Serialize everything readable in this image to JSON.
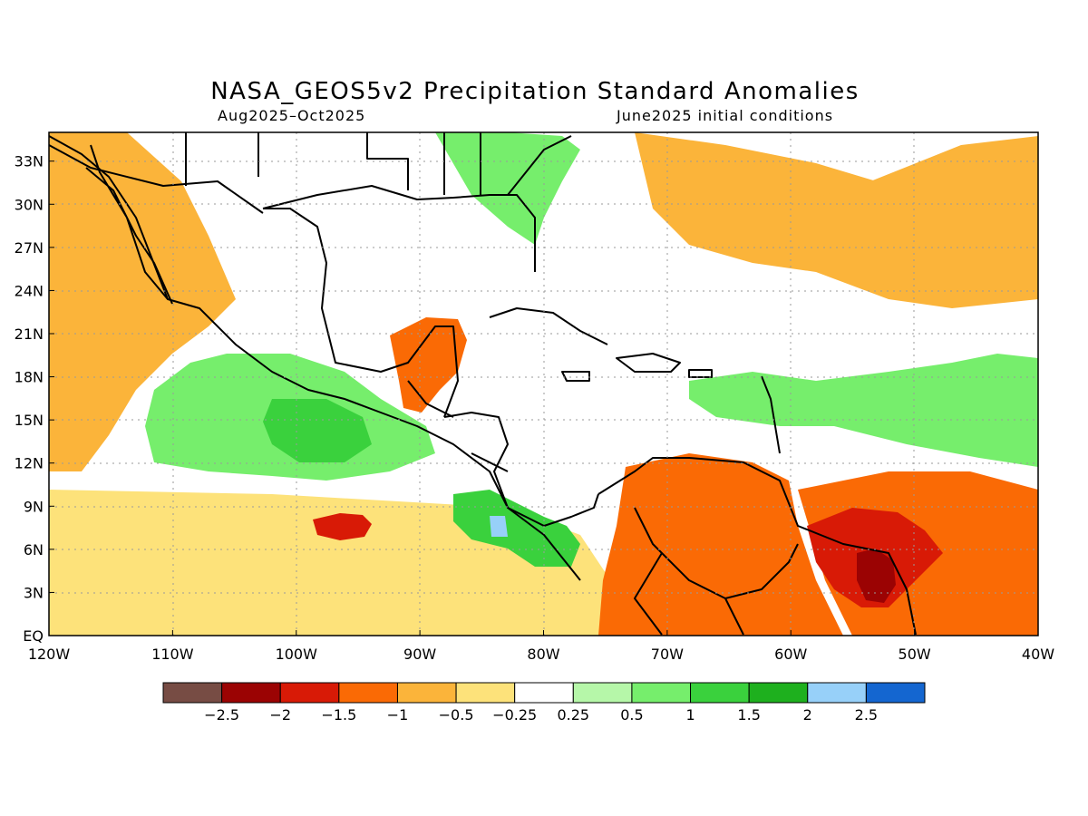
{
  "figure": {
    "title": "NASA_GEOS5v2 Precipitation Standard Anomalies",
    "period": "Aug2025–Oct2025",
    "init": "June2025 initial conditions"
  },
  "axes": {
    "lat_labels": [
      "EQ",
      "3N",
      "6N",
      "9N",
      "12N",
      "15N",
      "18N",
      "21N",
      "24N",
      "27N",
      "30N",
      "33N"
    ],
    "lon_labels": [
      "120W",
      "110W",
      "100W",
      "90W",
      "80W",
      "70W",
      "60W",
      "50W",
      "40W"
    ],
    "lat_range": [
      0,
      35
    ],
    "lon_range": [
      -120,
      -40
    ],
    "grid": true
  },
  "colorbar": {
    "colors": [
      "#774c44",
      "#9b0303",
      "#d81a06",
      "#fa6a05",
      "#fbb43a",
      "#fde27a",
      "#ffffff",
      "#b6f7a9",
      "#76ee6c",
      "#3ad13d",
      "#1eb01e",
      "#97d0f9",
      "#1466d0"
    ],
    "tick_labels": [
      "−2.5",
      "−2",
      "−1.5",
      "−1",
      "−0.5",
      "−0.25",
      "0.25",
      "0.5",
      "1",
      "1.5",
      "2",
      "2.5"
    ]
  },
  "anomaly_regions": [
    {
      "name": "yellow-east-pacific",
      "level": -0.25,
      "color": "#fde27a"
    },
    {
      "name": "orange-west",
      "level": -0.5,
      "color": "#fbb43a"
    },
    {
      "name": "orange-atlantic-north",
      "level": -0.5,
      "color": "#fbb43a"
    },
    {
      "name": "orange-atlantic-ne",
      "level": -0.5,
      "color": "#fbb43a"
    },
    {
      "name": "orange-south-america",
      "level": -1,
      "color": "#fa6a05"
    },
    {
      "name": "orange-atlantic-se",
      "level": -1,
      "color": "#fa6a05"
    },
    {
      "name": "green-mexico",
      "level": 0.5,
      "color": "#76ee6c"
    },
    {
      "name": "green-mexico-core",
      "level": 1.5,
      "color": "#3ad13d"
    },
    {
      "name": "green-florida",
      "level": 0.5,
      "color": "#76ee6c"
    },
    {
      "name": "green-central-atlantic",
      "level": 0.5,
      "color": "#76ee6c"
    },
    {
      "name": "green-costa-rica",
      "level": 1,
      "color": "#3ad13d"
    },
    {
      "name": "red-guiana",
      "level": -1.5,
      "color": "#d81a06"
    },
    {
      "name": "darkred-guiana",
      "level": -2.5,
      "color": "#9b0303"
    },
    {
      "name": "yucatan-orange",
      "level": -1,
      "color": "#fa6a05"
    },
    {
      "name": "pacific-red-patch",
      "level": -1.5,
      "color": "#d81a06"
    },
    {
      "name": "blue-costa-rica",
      "level": 2.5,
      "color": "#97d0f9"
    }
  ]
}
